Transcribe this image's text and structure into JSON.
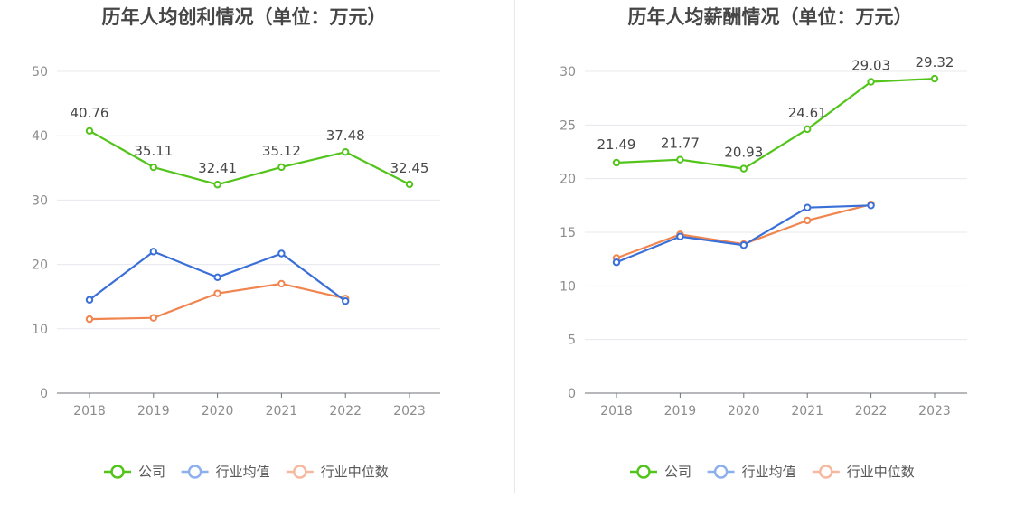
{
  "chart_data": [
    {
      "type": "line",
      "title": "历年人均创利情况（单位：万元）",
      "categories": [
        "2018",
        "2019",
        "2020",
        "2021",
        "2022",
        "2023"
      ],
      "ylim": [
        0,
        50
      ],
      "yticks": [
        0,
        10,
        20,
        30,
        40,
        50
      ],
      "grid": true,
      "legend_position": "bottom",
      "series": [
        {
          "name": "公司",
          "color": "#52c41a",
          "values": [
            40.76,
            35.11,
            32.41,
            35.12,
            37.48,
            32.45
          ],
          "labels": [
            "40.76",
            "35.11",
            "32.41",
            "35.12",
            "37.48",
            "32.45"
          ]
        },
        {
          "name": "行业均值",
          "color": "#3b6fd8",
          "values": [
            14.5,
            22.0,
            18.0,
            21.7,
            14.3,
            null
          ]
        },
        {
          "name": "行业中位数",
          "color": "#f0854f",
          "values": [
            11.5,
            11.7,
            15.5,
            17.0,
            14.7,
            null
          ]
        }
      ]
    },
    {
      "type": "line",
      "title": "历年人均薪酬情况（单位：万元）",
      "categories": [
        "2018",
        "2019",
        "2020",
        "2021",
        "2022",
        "2023"
      ],
      "ylim": [
        0,
        30
      ],
      "yticks": [
        0,
        5,
        10,
        15,
        20,
        25,
        30
      ],
      "grid": true,
      "legend_position": "bottom",
      "series": [
        {
          "name": "公司",
          "color": "#52c41a",
          "values": [
            21.49,
            21.77,
            20.93,
            24.61,
            29.03,
            29.32
          ],
          "labels": [
            "21.49",
            "21.77",
            "20.93",
            "24.61",
            "29.03",
            "29.32"
          ]
        },
        {
          "name": "行业均值",
          "color": "#3b6fd8",
          "values": [
            12.2,
            14.6,
            13.8,
            17.3,
            17.5,
            null
          ]
        },
        {
          "name": "行业中位数",
          "color": "#f0854f",
          "values": [
            12.6,
            14.8,
            13.9,
            16.1,
            17.6,
            null
          ]
        }
      ]
    }
  ],
  "legend_icon_colors": [
    "#52c41a",
    "#8cb0ee",
    "#f6b9a0"
  ]
}
